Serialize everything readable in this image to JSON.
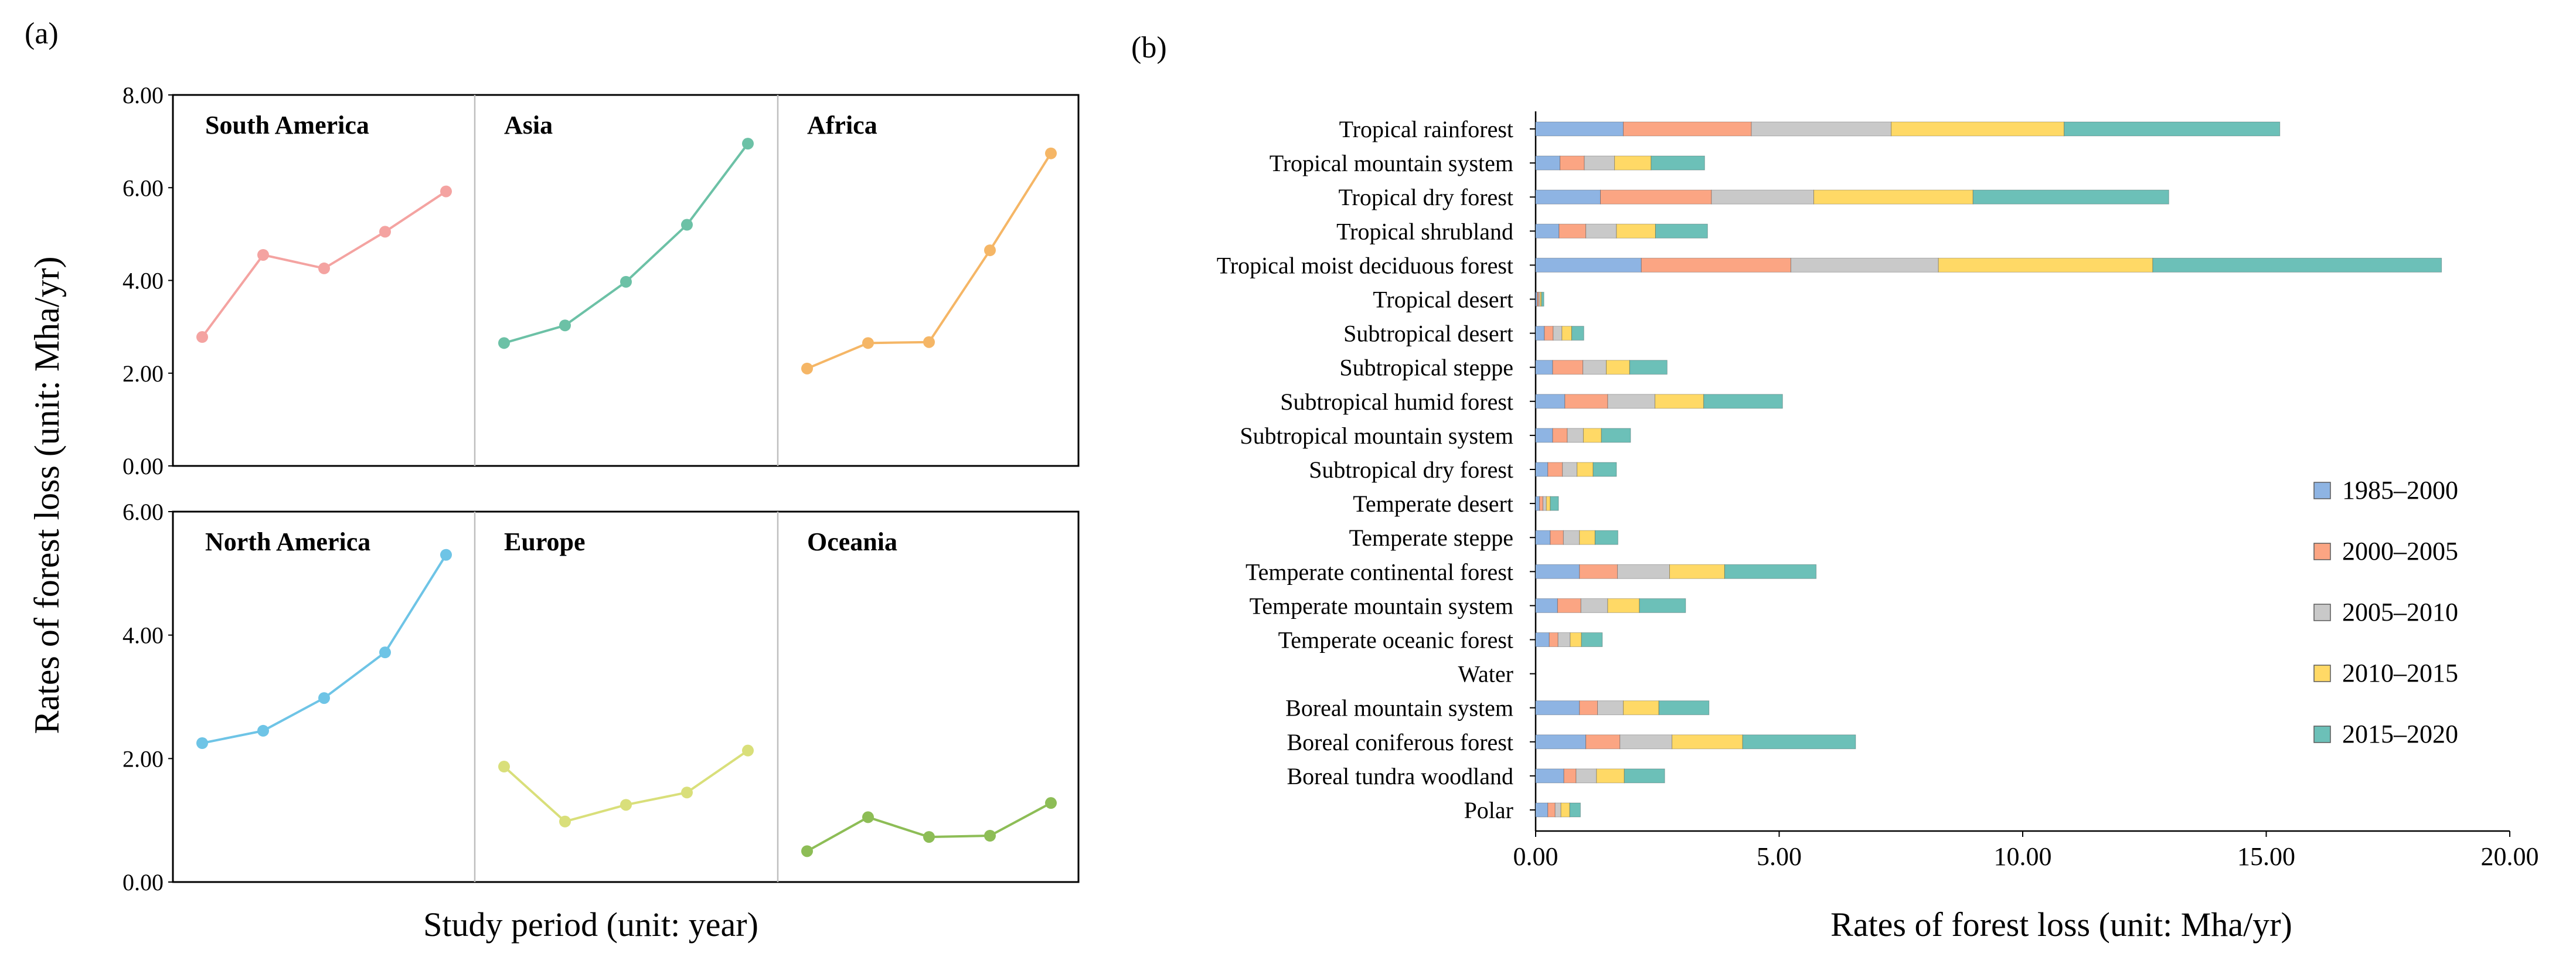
{
  "panel_a": {
    "label": "(a)"
  },
  "panel_b": {
    "label": "(b)"
  },
  "colors": {
    "South America": "#f4a3a1",
    "Asia": "#6cc1a6",
    "Africa": "#f5b666",
    "North America": "#6ec4e6",
    "Europe": "#d9df7a",
    "Oceania": "#8dbd56",
    "1985–2000": "#8eb4e3",
    "2000–2005": "#fba583",
    "2005–2010": "#c9c9c9",
    "2010–2015": "#ffd966",
    "2015–2020": "#6cc0b8"
  },
  "chart_data": [
    {
      "type": "line",
      "panel": "(a)",
      "title": "",
      "xlabel": "Study period (unit: year)",
      "ylabel": "Rates of forest loss (unit: Mha/yr)",
      "facets": [
        {
          "row": "top",
          "ylim": [
            0,
            8
          ],
          "yticks": [
            "0.00",
            "2.00",
            "4.00",
            "6.00",
            "8.00"
          ],
          "tick_values": [
            0,
            2,
            4,
            6,
            8
          ],
          "series": [
            {
              "name": "South America",
              "values": [
                2.78,
                4.55,
                4.26,
                5.05,
                5.92
              ]
            },
            {
              "name": "Asia",
              "values": [
                2.65,
                3.03,
                3.97,
                5.2,
                6.95
              ]
            },
            {
              "name": "Africa",
              "values": [
                2.1,
                2.65,
                2.67,
                4.65,
                6.74
              ]
            }
          ]
        },
        {
          "row": "bottom",
          "ylim": [
            0,
            6
          ],
          "yticks": [
            "0.00",
            "2.00",
            "4.00",
            "6.00"
          ],
          "tick_values": [
            0,
            2,
            4,
            6
          ],
          "series": [
            {
              "name": "North America",
              "values": [
                2.25,
                2.45,
                2.98,
                3.72,
                5.3
              ]
            },
            {
              "name": "Europe",
              "values": [
                1.87,
                0.98,
                1.25,
                1.45,
                2.13
              ]
            },
            {
              "name": "Oceania",
              "values": [
                0.5,
                1.05,
                0.73,
                0.75,
                1.28
              ]
            }
          ]
        }
      ]
    },
    {
      "type": "bar",
      "orientation": "horizontal",
      "stacked": true,
      "panel": "(b)",
      "title": "",
      "xlabel": "Rates of forest loss (unit: Mha/yr)",
      "ylabel": "",
      "xlim": [
        0,
        20
      ],
      "xticks": [
        "0.00",
        "5.00",
        "10.00",
        "15.00",
        "20.00"
      ],
      "tick_values": [
        0,
        5,
        10,
        15,
        20
      ],
      "legend_position": "right",
      "categories": [
        "Tropical rainforest",
        "Tropical mountain system",
        "Tropical dry forest",
        "Tropical shrubland",
        "Tropical moist deciduous forest",
        "Tropical desert",
        "Subtropical desert",
        "Subtropical steppe",
        "Subtropical humid forest",
        "Subtropical mountain system",
        "Subtropical dry forest",
        "Temperate desert",
        "Temperate steppe",
        "Temperate continental forest",
        "Temperate mountain system",
        "Temperate oceanic forest",
        "Water",
        "Boreal mountain system",
        "Boreal coniferous forest",
        "Boreal tundra woodland",
        "Polar"
      ],
      "series": [
        {
          "name": "1985–2000",
          "values": [
            1.8,
            0.5,
            1.33,
            0.48,
            2.17,
            0.03,
            0.18,
            0.35,
            0.6,
            0.35,
            0.25,
            0.08,
            0.3,
            0.9,
            0.45,
            0.28,
            0,
            0.9,
            1.03,
            0.58,
            0.25
          ]
        },
        {
          "name": "2000–2005",
          "values": [
            2.63,
            0.5,
            2.28,
            0.55,
            3.07,
            0.03,
            0.18,
            0.62,
            0.88,
            0.3,
            0.3,
            0.07,
            0.27,
            0.78,
            0.48,
            0.18,
            0,
            0.37,
            0.7,
            0.25,
            0.15
          ]
        },
        {
          "name": "2005–2010",
          "values": [
            2.87,
            0.62,
            2.1,
            0.63,
            3.03,
            0.03,
            0.18,
            0.48,
            0.97,
            0.33,
            0.3,
            0.07,
            0.33,
            1.07,
            0.55,
            0.25,
            0,
            0.53,
            1.07,
            0.42,
            0.12
          ]
        },
        {
          "name": "2010–2015",
          "values": [
            3.55,
            0.75,
            3.27,
            0.8,
            4.4,
            0.03,
            0.2,
            0.48,
            1.0,
            0.37,
            0.33,
            0.08,
            0.32,
            1.13,
            0.65,
            0.23,
            0,
            0.73,
            1.45,
            0.57,
            0.18
          ]
        },
        {
          "name": "2015–2020",
          "values": [
            4.43,
            1.1,
            4.02,
            1.07,
            5.93,
            0.05,
            0.25,
            0.77,
            1.62,
            0.6,
            0.48,
            0.17,
            0.47,
            1.88,
            0.95,
            0.43,
            0,
            1.03,
            2.32,
            0.83,
            0.22
          ]
        }
      ]
    }
  ]
}
